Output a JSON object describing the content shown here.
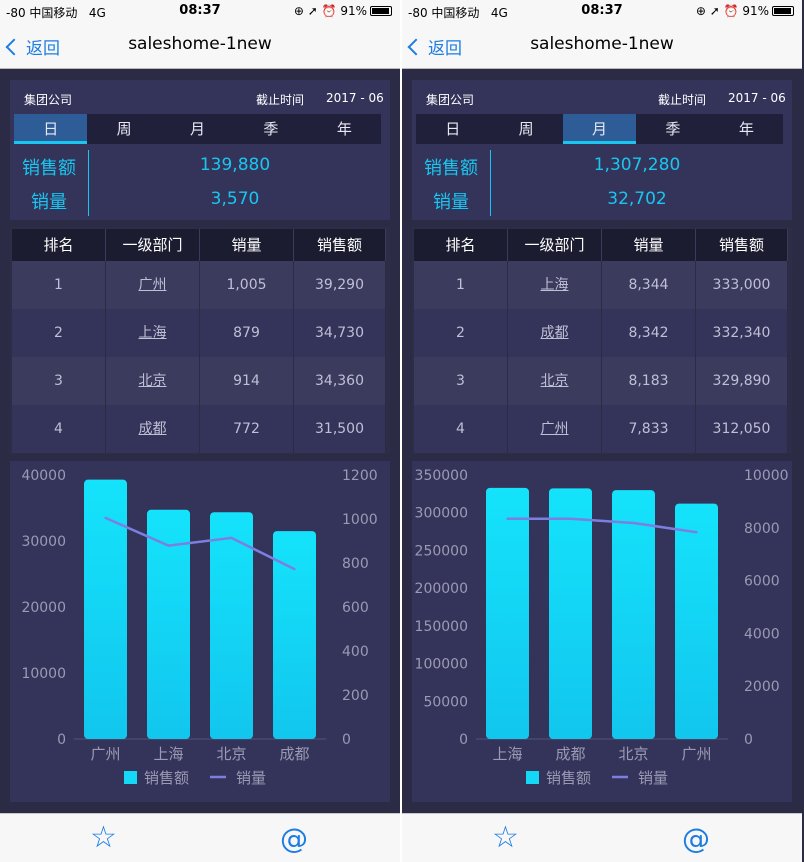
{
  "status": {
    "carrier": "-80 中国移动",
    "network": "4G",
    "time": "08:37",
    "battery": "91%"
  },
  "nav": {
    "back_label": "返回",
    "title": "saleshome-1new"
  },
  "panes": [
    {
      "company": "集团公司",
      "date_label": "截止时间",
      "date": "2017 - 06",
      "tabs": [
        "日",
        "周",
        "月",
        "季",
        "年"
      ],
      "active_tab": 0,
      "sales_amount_label": "销售额",
      "sales_amount": "139,880",
      "sales_qty_label": "销量",
      "sales_qty": "3,570",
      "table": {
        "headers": [
          "排名",
          "一级部门",
          "销量",
          "销售额"
        ],
        "rows": [
          [
            "1",
            "广州",
            "1,005",
            "39,290"
          ],
          [
            "2",
            "上海",
            "879",
            "34,730"
          ],
          [
            "3",
            "北京",
            "914",
            "34,360"
          ],
          [
            "4",
            "成都",
            "772",
            "31,500"
          ]
        ]
      },
      "chart_data": {
        "type": "bar",
        "categories": [
          "广州",
          "上海",
          "北京",
          "成都"
        ],
        "series": [
          {
            "name": "销售额",
            "type": "bar",
            "axis": "left",
            "values": [
              39290,
              34730,
              34360,
              31500
            ]
          },
          {
            "name": "销量",
            "type": "line",
            "axis": "right",
            "values": [
              1005,
              879,
              914,
              772
            ]
          }
        ],
        "ylim_left": [
          0,
          40000
        ],
        "ylim_right": [
          0,
          1200
        ],
        "left_ticks": [
          "0",
          "10000",
          "20000",
          "30000",
          "40000"
        ],
        "right_ticks": [
          "0",
          "200",
          "400",
          "600",
          "800",
          "1000",
          "1200"
        ],
        "legend": "bottom",
        "colors": {
          "bar": "#1ad0f2",
          "line": "#7b7fe0"
        }
      }
    },
    {
      "company": "集团公司",
      "date_label": "截止时间",
      "date": "2017 - 06",
      "tabs": [
        "日",
        "周",
        "月",
        "季",
        "年"
      ],
      "active_tab": 2,
      "sales_amount_label": "销售额",
      "sales_amount": "1,307,280",
      "sales_qty_label": "销量",
      "sales_qty": "32,702",
      "table": {
        "headers": [
          "排名",
          "一级部门",
          "销量",
          "销售额"
        ],
        "rows": [
          [
            "1",
            "上海",
            "8,344",
            "333,000"
          ],
          [
            "2",
            "成都",
            "8,342",
            "332,340"
          ],
          [
            "3",
            "北京",
            "8,183",
            "329,890"
          ],
          [
            "4",
            "广州",
            "7,833",
            "312,050"
          ]
        ]
      },
      "chart_data": {
        "type": "bar",
        "categories": [
          "上海",
          "成都",
          "北京",
          "广州"
        ],
        "series": [
          {
            "name": "销售额",
            "type": "bar",
            "axis": "left",
            "values": [
              333000,
              332340,
              329890,
              312050
            ]
          },
          {
            "name": "销量",
            "type": "line",
            "axis": "right",
            "values": [
              8344,
              8342,
              8183,
              7833
            ]
          }
        ],
        "ylim_left": [
          0,
          350000
        ],
        "ylim_right": [
          0,
          10000
        ],
        "left_ticks": [
          "0",
          "50000",
          "100000",
          "150000",
          "200000",
          "250000",
          "300000",
          "350000"
        ],
        "right_ticks": [
          "0",
          "2000",
          "4000",
          "6000",
          "8000",
          "10000"
        ],
        "legend": "bottom",
        "colors": {
          "bar": "#1ad0f2",
          "line": "#7b7fe0"
        }
      }
    }
  ],
  "tabbar": {
    "favorite_icon": "star-icon",
    "mention_icon": "at-icon"
  }
}
